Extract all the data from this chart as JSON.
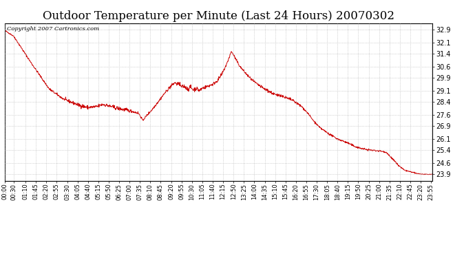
{
  "title": "Outdoor Temperature per Minute (Last 24 Hours) 20070302",
  "copyright_text": "Copyright 2007 Cartronics.com",
  "line_color": "#cc0000",
  "bg_color": "#ffffff",
  "plot_bg_color": "#ffffff",
  "grid_color": "#b0b0b0",
  "y_ticks": [
    23.9,
    24.6,
    25.4,
    26.1,
    26.9,
    27.6,
    28.4,
    29.1,
    29.9,
    30.6,
    31.4,
    32.1,
    32.9
  ],
  "ylim": [
    23.5,
    33.3
  ],
  "x_labels": [
    "00:00",
    "00:30",
    "01:10",
    "01:45",
    "02:20",
    "02:55",
    "03:30",
    "04:05",
    "04:40",
    "05:15",
    "05:50",
    "06:25",
    "07:00",
    "07:35",
    "08:10",
    "08:45",
    "09:20",
    "09:55",
    "10:30",
    "11:05",
    "11:40",
    "12:15",
    "12:50",
    "13:25",
    "14:00",
    "14:35",
    "15:10",
    "15:45",
    "16:20",
    "16:55",
    "17:30",
    "18:05",
    "18:40",
    "19:15",
    "19:50",
    "20:25",
    "21:00",
    "21:35",
    "22:10",
    "22:45",
    "23:20",
    "23:55"
  ],
  "title_fontsize": 12,
  "tick_fontsize": 7,
  "xlabel_fontsize": 6
}
